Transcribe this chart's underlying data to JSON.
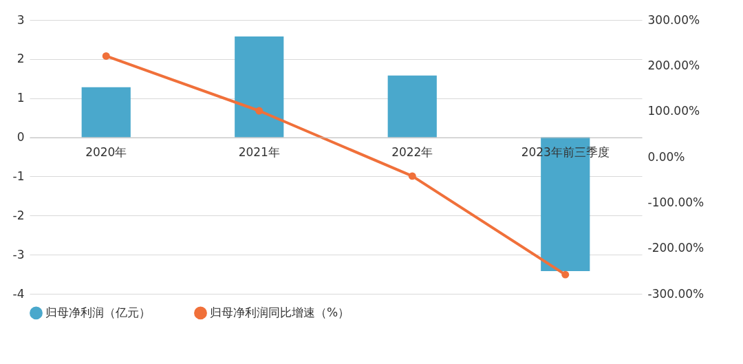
{
  "chart_data": {
    "type": "bar",
    "categories": [
      "2020年",
      "2021年",
      "2022年",
      "2023年前三季度"
    ],
    "series": [
      {
        "name": "归母净利润（亿元）",
        "color": "#4aa8cc",
        "values": [
          1.28,
          2.58,
          1.58,
          -3.42
        ]
      },
      {
        "name": "归母净利润同比增速（%）",
        "type": "line",
        "axis": "y2",
        "color": "#f0703a",
        "values": [
          221,
          101,
          -42,
          -258
        ]
      }
    ],
    "ylim": [
      -4,
      3
    ],
    "yticks": [
      -4,
      -3,
      -2,
      -1,
      0,
      1,
      2,
      3
    ],
    "y2lim": [
      -300,
      300
    ],
    "y2ticks": [
      {
        "value": -300,
        "label": "-300.00%"
      },
      {
        "value": -200,
        "label": "-200.00%"
      },
      {
        "value": -100,
        "label": "-100.00%"
      },
      {
        "value": 0,
        "label": "0.00%"
      },
      {
        "value": 100,
        "label": "100.00%"
      },
      {
        "value": 200,
        "label": "200.00%"
      },
      {
        "value": 300,
        "label": "300.00%"
      }
    ],
    "grid": "y",
    "legend": "bottom",
    "marker": "circle"
  }
}
